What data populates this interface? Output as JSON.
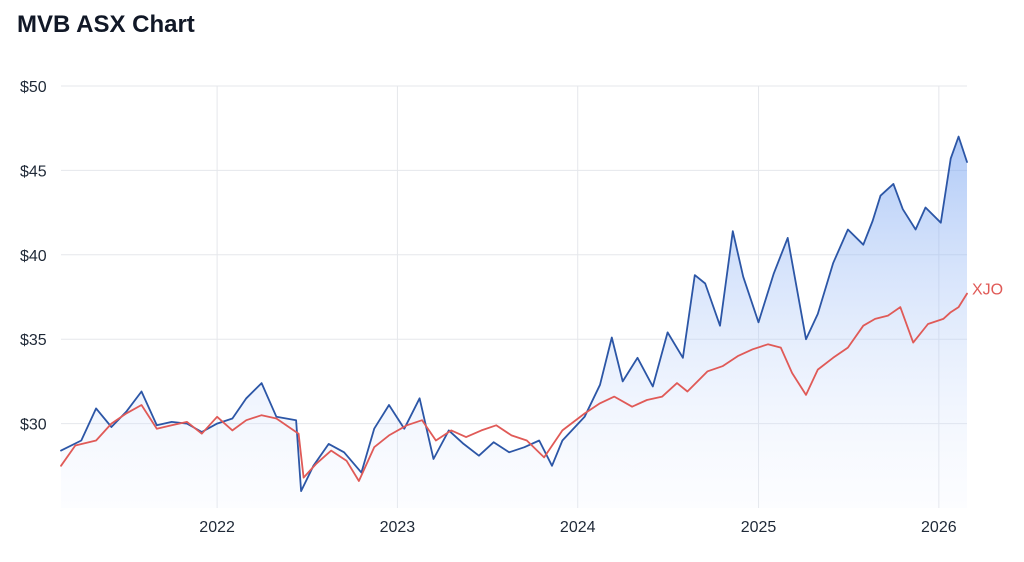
{
  "title": "MVB ASX Chart",
  "chart_data": {
    "type": "line",
    "title": "MVB ASX Chart",
    "xlabel": "",
    "ylabel": "",
    "x_range": [
      "2021-02-19",
      "2026-02-27"
    ],
    "ylim": [
      25,
      50
    ],
    "y_ticks": [
      30,
      35,
      40,
      45,
      50
    ],
    "y_tick_labels": [
      "$30",
      "$35",
      "$40",
      "$45",
      "$50"
    ],
    "x_ticks": [
      "2022",
      "2023",
      "2024",
      "2025",
      "2026"
    ],
    "grid": true,
    "series": [
      {
        "name": "",
        "color": "#2c56a6",
        "fill": "area",
        "points": [
          [
            "2021-02-19",
            28.4
          ],
          [
            "2021-04-01",
            29.0
          ],
          [
            "2021-05-01",
            30.9
          ],
          [
            "2021-06-01",
            29.8
          ],
          [
            "2021-07-01",
            30.7
          ],
          [
            "2021-08-01",
            31.9
          ],
          [
            "2021-09-01",
            29.9
          ],
          [
            "2021-10-01",
            30.1
          ],
          [
            "2021-11-01",
            30.0
          ],
          [
            "2021-12-01",
            29.5
          ],
          [
            "2022-01-01",
            30.0
          ],
          [
            "2022-02-01",
            30.3
          ],
          [
            "2022-03-01",
            31.5
          ],
          [
            "2022-04-01",
            32.4
          ],
          [
            "2022-05-01",
            30.4
          ],
          [
            "2022-06-10",
            30.2
          ],
          [
            "2022-06-20",
            26.0
          ],
          [
            "2022-07-15",
            27.5
          ],
          [
            "2022-08-15",
            28.8
          ],
          [
            "2022-09-15",
            28.3
          ],
          [
            "2022-10-20",
            27.1
          ],
          [
            "2022-11-15",
            29.7
          ],
          [
            "2022-12-15",
            31.1
          ],
          [
            "2023-01-15",
            29.7
          ],
          [
            "2023-02-15",
            31.5
          ],
          [
            "2023-03-15",
            27.9
          ],
          [
            "2023-04-15",
            29.6
          ],
          [
            "2023-05-15",
            28.8
          ],
          [
            "2023-06-15",
            28.1
          ],
          [
            "2023-07-15",
            28.9
          ],
          [
            "2023-08-15",
            28.3
          ],
          [
            "2023-09-15",
            28.6
          ],
          [
            "2023-10-15",
            29.0
          ],
          [
            "2023-11-10",
            27.5
          ],
          [
            "2023-12-01",
            29.0
          ],
          [
            "2024-01-15",
            30.4
          ],
          [
            "2024-02-15",
            32.3
          ],
          [
            "2024-03-10",
            35.1
          ],
          [
            "2024-04-01",
            32.5
          ],
          [
            "2024-05-01",
            33.9
          ],
          [
            "2024-06-01",
            32.2
          ],
          [
            "2024-07-01",
            35.4
          ],
          [
            "2024-08-01",
            33.9
          ],
          [
            "2024-08-25",
            38.8
          ],
          [
            "2024-09-15",
            38.3
          ],
          [
            "2024-10-15",
            35.8
          ],
          [
            "2024-11-10",
            41.4
          ],
          [
            "2024-12-01",
            38.7
          ],
          [
            "2025-01-01",
            36.0
          ],
          [
            "2025-02-01",
            38.9
          ],
          [
            "2025-03-01",
            41.0
          ],
          [
            "2025-04-07",
            35.0
          ],
          [
            "2025-05-01",
            36.5
          ],
          [
            "2025-06-01",
            39.5
          ],
          [
            "2025-07-01",
            41.5
          ],
          [
            "2025-08-01",
            40.6
          ],
          [
            "2025-08-20",
            42.0
          ],
          [
            "2025-09-05",
            43.5
          ],
          [
            "2025-10-01",
            44.2
          ],
          [
            "2025-10-20",
            42.7
          ],
          [
            "2025-11-15",
            41.5
          ],
          [
            "2025-12-05",
            42.8
          ],
          [
            "2026-01-05",
            41.9
          ],
          [
            "2026-01-25",
            45.7
          ],
          [
            "2026-02-10",
            47.0
          ],
          [
            "2026-02-27",
            45.5
          ]
        ]
      },
      {
        "name": "XJO",
        "color": "#e05a57",
        "points": [
          [
            "2021-02-19",
            27.5
          ],
          [
            "2021-03-20",
            28.7
          ],
          [
            "2021-05-01",
            29.0
          ],
          [
            "2021-06-01",
            30.0
          ],
          [
            "2021-07-01",
            30.6
          ],
          [
            "2021-08-01",
            31.1
          ],
          [
            "2021-09-01",
            29.7
          ],
          [
            "2021-10-01",
            29.9
          ],
          [
            "2021-11-01",
            30.1
          ],
          [
            "2021-12-01",
            29.4
          ],
          [
            "2022-01-01",
            30.4
          ],
          [
            "2022-02-01",
            29.6
          ],
          [
            "2022-03-01",
            30.2
          ],
          [
            "2022-04-01",
            30.5
          ],
          [
            "2022-05-01",
            30.3
          ],
          [
            "2022-06-15",
            29.4
          ],
          [
            "2022-06-25",
            26.8
          ],
          [
            "2022-07-20",
            27.6
          ],
          [
            "2022-08-20",
            28.4
          ],
          [
            "2022-09-20",
            27.8
          ],
          [
            "2022-10-15",
            26.6
          ],
          [
            "2022-11-15",
            28.6
          ],
          [
            "2022-12-15",
            29.3
          ],
          [
            "2023-01-20",
            29.9
          ],
          [
            "2023-02-20",
            30.2
          ],
          [
            "2023-03-20",
            29.0
          ],
          [
            "2023-04-20",
            29.6
          ],
          [
            "2023-05-20",
            29.2
          ],
          [
            "2023-06-20",
            29.6
          ],
          [
            "2023-07-20",
            29.9
          ],
          [
            "2023-08-20",
            29.3
          ],
          [
            "2023-09-20",
            29.0
          ],
          [
            "2023-10-25",
            28.0
          ],
          [
            "2023-12-01",
            29.6
          ],
          [
            "2024-01-15",
            30.6
          ],
          [
            "2024-02-15",
            31.2
          ],
          [
            "2024-03-15",
            31.6
          ],
          [
            "2024-04-20",
            31.0
          ],
          [
            "2024-05-20",
            31.4
          ],
          [
            "2024-06-20",
            31.6
          ],
          [
            "2024-07-20",
            32.4
          ],
          [
            "2024-08-10",
            31.9
          ],
          [
            "2024-09-20",
            33.1
          ],
          [
            "2024-10-20",
            33.4
          ],
          [
            "2024-11-20",
            34.0
          ],
          [
            "2024-12-20",
            34.4
          ],
          [
            "2025-01-20",
            34.7
          ],
          [
            "2025-02-15",
            34.5
          ],
          [
            "2025-03-10",
            33.0
          ],
          [
            "2025-04-07",
            31.7
          ],
          [
            "2025-05-01",
            33.2
          ],
          [
            "2025-06-01",
            33.9
          ],
          [
            "2025-07-01",
            34.5
          ],
          [
            "2025-08-01",
            35.8
          ],
          [
            "2025-08-25",
            36.2
          ],
          [
            "2025-09-20",
            36.4
          ],
          [
            "2025-10-15",
            36.9
          ],
          [
            "2025-11-10",
            34.8
          ],
          [
            "2025-12-10",
            35.9
          ],
          [
            "2026-01-10",
            36.2
          ],
          [
            "2026-01-25",
            36.6
          ],
          [
            "2026-02-10",
            36.9
          ],
          [
            "2026-02-27",
            37.7
          ]
        ]
      }
    ]
  }
}
